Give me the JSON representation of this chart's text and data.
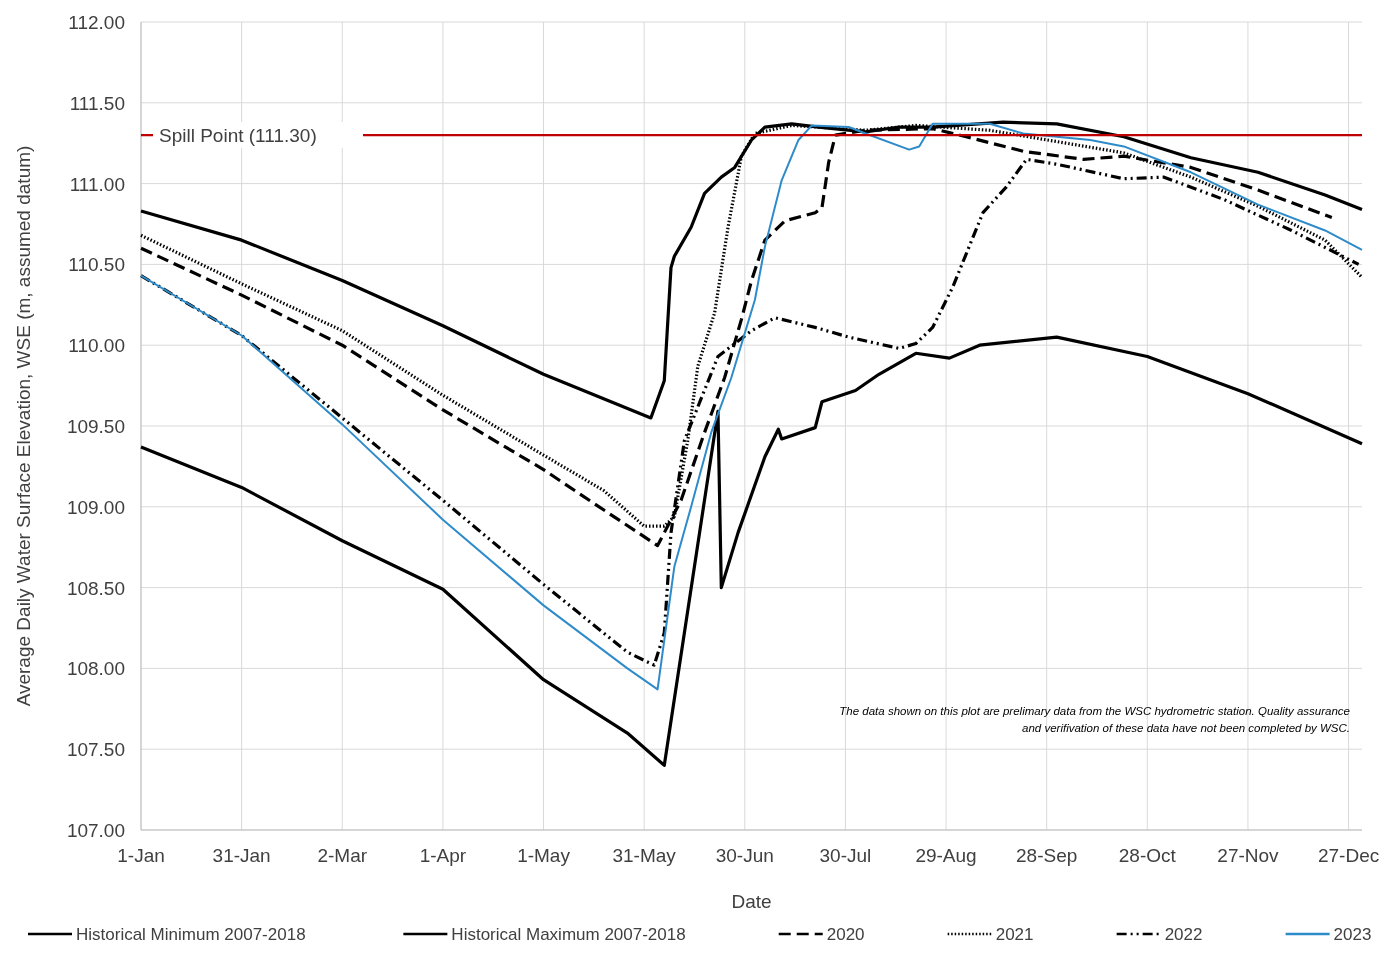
{
  "chart_data": {
    "type": "line",
    "xlabel": "Date",
    "ylabel": "Average Daily Water Surface Elevation, WSE (m, assumed datum)",
    "xlim": [
      "--01-01",
      "--12-31"
    ],
    "xticks": [
      {
        "value": "--01-01",
        "label": "1-Jan"
      },
      {
        "value": "--01-31",
        "label": "31-Jan"
      },
      {
        "value": "--03-02",
        "label": "2-Mar"
      },
      {
        "value": "--04-01",
        "label": "1-Apr"
      },
      {
        "value": "--05-01",
        "label": "1-May"
      },
      {
        "value": "--05-31",
        "label": "31-May"
      },
      {
        "value": "--06-30",
        "label": "30-Jun"
      },
      {
        "value": "--07-30",
        "label": "30-Jul"
      },
      {
        "value": "--08-29",
        "label": "29-Aug"
      },
      {
        "value": "--09-28",
        "label": "28-Sep"
      },
      {
        "value": "--10-28",
        "label": "28-Oct"
      },
      {
        "value": "--11-27",
        "label": "27-Nov"
      },
      {
        "value": "--12-27",
        "label": "27-Dec"
      }
    ],
    "ylim": [
      107,
      112
    ],
    "yticks": [
      {
        "value": 107,
        "label": "107.00"
      },
      {
        "value": 107.5,
        "label": "107.50"
      },
      {
        "value": 108,
        "label": "108.00"
      },
      {
        "value": 108.5,
        "label": "108.50"
      },
      {
        "value": 109,
        "label": "109.00"
      },
      {
        "value": 109.5,
        "label": "109.50"
      },
      {
        "value": 110,
        "label": "110.00"
      },
      {
        "value": 110.5,
        "label": "110.50"
      },
      {
        "value": 111,
        "label": "111.00"
      },
      {
        "value": 111.5,
        "label": "111.50"
      },
      {
        "value": 112,
        "label": "112.00"
      }
    ],
    "grid": true,
    "legend": "bottom",
    "ref_lines": [
      {
        "axis": "y",
        "value": 111.3,
        "label": "Spill Point (111.30)",
        "color": "#c00000"
      }
    ],
    "annotations": [
      "The data shown on this plot are prelimary data from the WSC hydrometric station. Quality assurance and verifivation of these data have not been completed by WSC."
    ],
    "series": [
      {
        "name": "Historical Minimum 2007-2018",
        "color": "#000000",
        "line_style": "solid",
        "x": [
          "--01-01",
          "--01-31",
          "--03-02",
          "--04-01",
          "--05-01",
          "--05-26",
          "--06-06",
          "--06-22",
          "--06-23",
          "--06-28",
          "--07-06",
          "--07-10",
          "--07-11",
          "--07-21",
          "--07-23",
          "--08-02",
          "--08-09",
          "--08-20",
          "--08-30",
          "--09-08",
          "--10-01",
          "--10-28",
          "--11-27",
          "--12-31"
        ],
        "values": [
          109.37,
          109.12,
          108.79,
          108.49,
          107.93,
          107.6,
          107.4,
          109.59,
          108.5,
          108.84,
          109.31,
          109.48,
          109.42,
          109.49,
          109.65,
          109.72,
          109.82,
          109.95,
          109.92,
          110.0,
          110.05,
          109.93,
          109.7,
          109.39
        ]
      },
      {
        "name": "Historical Maximum 2007-2018",
        "color": "#000000",
        "line_style": "solid",
        "x": [
          "--01-01",
          "--01-31",
          "--03-02",
          "--04-01",
          "--05-01",
          "--06-02",
          "--06-06",
          "--06-08",
          "--06-09",
          "--06-14",
          "--06-18",
          "--06-23",
          "--06-27",
          "--07-02",
          "--07-06",
          "--07-14",
          "--07-22",
          "--08-05",
          "--08-15",
          "--08-25",
          "--09-15",
          "--10-01",
          "--10-21",
          "--11-10",
          "--11-30",
          "--12-20",
          "--12-31"
        ],
        "values": [
          110.83,
          110.65,
          110.4,
          110.12,
          109.82,
          109.55,
          109.78,
          110.48,
          110.55,
          110.73,
          110.94,
          111.04,
          111.1,
          111.27,
          111.35,
          111.37,
          111.35,
          111.32,
          111.35,
          111.35,
          111.38,
          111.37,
          111.29,
          111.16,
          111.07,
          110.93,
          110.84
        ]
      },
      {
        "name": "2020",
        "color": "#000000",
        "line_style": "dashed",
        "x": [
          "--01-01",
          "--01-31",
          "--03-02",
          "--04-01",
          "--05-01",
          "--05-19",
          "--06-04",
          "--06-11",
          "--06-18",
          "--06-24",
          "--06-29",
          "--07-02",
          "--07-06",
          "--07-12",
          "--07-21",
          "--07-23",
          "--07-25",
          "--07-27",
          "--08-05",
          "--08-25",
          "--09-04",
          "--09-21",
          "--10-09",
          "--10-21",
          "--11-10",
          "--11-30",
          "--12-22"
        ],
        "values": [
          110.6,
          110.31,
          110.0,
          109.6,
          109.23,
          108.98,
          108.76,
          109.04,
          109.46,
          109.8,
          110.16,
          110.4,
          110.65,
          110.77,
          110.82,
          110.85,
          111.13,
          111.3,
          111.33,
          111.34,
          111.29,
          111.2,
          111.15,
          111.17,
          111.1,
          110.96,
          110.79
        ]
      },
      {
        "name": "2021",
        "color": "#000000",
        "line_style": "dotted",
        "x": [
          "--01-01",
          "--01-31",
          "--03-02",
          "--04-01",
          "--05-01",
          "--05-19",
          "--05-31",
          "--06-06",
          "--06-09",
          "--06-13",
          "--06-16",
          "--06-21",
          "--06-25",
          "--06-29",
          "--07-03",
          "--07-14",
          "--08-05",
          "--08-20",
          "--09-11",
          "--10-01",
          "--10-21",
          "--11-10",
          "--11-30",
          "--12-20",
          "--12-31"
        ],
        "values": [
          110.68,
          110.38,
          110.09,
          109.69,
          109.32,
          109.1,
          108.88,
          108.88,
          108.94,
          109.41,
          109.87,
          110.2,
          110.73,
          111.17,
          111.31,
          111.36,
          111.33,
          111.36,
          111.33,
          111.26,
          111.19,
          111.04,
          110.86,
          110.65,
          110.42
        ]
      },
      {
        "name": "2022",
        "color": "#000000",
        "line_style": "dashdotdot",
        "x": [
          "--01-01",
          "--01-31",
          "--03-02",
          "--04-01",
          "--05-01",
          "--05-26",
          "--06-03",
          "--06-06",
          "--06-08",
          "--06-12",
          "--06-22",
          "--07-02",
          "--07-09",
          "--07-21",
          "--07-31",
          "--08-15",
          "--08-20",
          "--08-25",
          "--08-31",
          "--09-09",
          "--09-16",
          "--09-22",
          "--10-01",
          "--10-21",
          "--11-02",
          "--11-20",
          "--12-10",
          "--12-30"
        ],
        "values": [
          110.43,
          110.06,
          109.55,
          109.04,
          108.52,
          108.1,
          108.02,
          108.22,
          108.84,
          109.41,
          109.93,
          110.09,
          110.17,
          110.11,
          110.05,
          109.98,
          110.01,
          110.11,
          110.36,
          110.82,
          110.98,
          111.15,
          111.12,
          111.03,
          111.04,
          110.9,
          110.71,
          110.5
        ]
      },
      {
        "name": "2023",
        "color": "#2e8bc9",
        "line_style": "solid",
        "x": [
          "--01-01",
          "--01-31",
          "--03-02",
          "--04-01",
          "--05-01",
          "--05-26",
          "--06-04",
          "--06-09",
          "--06-14",
          "--06-20",
          "--06-26",
          "--07-03",
          "--07-06",
          "--07-11",
          "--07-16",
          "--07-20",
          "--07-31",
          "--08-05",
          "--08-18",
          "--08-21",
          "--08-25",
          "--09-11",
          "--09-21",
          "--10-11",
          "--10-21",
          "--11-10",
          "--11-30",
          "--12-20",
          "--12-31"
        ],
        "values": [
          110.43,
          110.06,
          109.51,
          108.92,
          108.39,
          108.0,
          107.87,
          108.63,
          109.0,
          109.46,
          109.8,
          110.28,
          110.61,
          111.02,
          111.27,
          111.36,
          111.35,
          111.31,
          111.21,
          111.23,
          111.37,
          111.37,
          111.31,
          111.27,
          111.23,
          111.07,
          110.87,
          110.71,
          110.59
        ]
      }
    ]
  }
}
